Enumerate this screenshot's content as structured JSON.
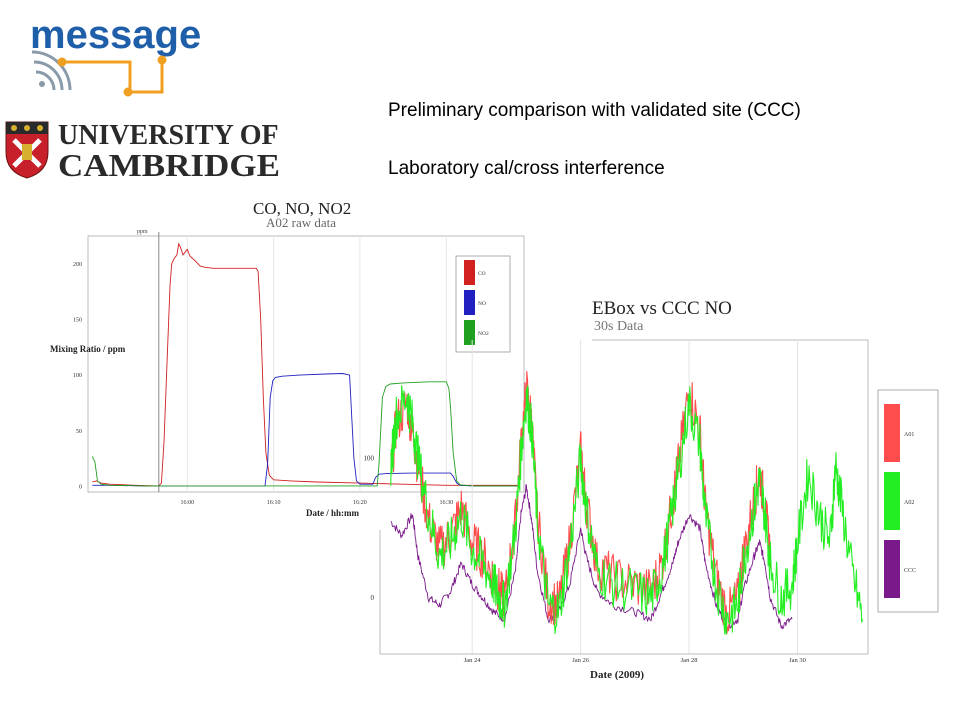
{
  "logos": {
    "message_word": "message",
    "university_line1": "UNIVERSITY OF",
    "university_line2": "CAMBRIDGE",
    "crest_icon": "cambridge-crest-icon",
    "signal_icon": "wireless-signal-icon"
  },
  "headings": {
    "line1": "Preliminary comparison with validated site (CCC)",
    "line2": "Laboratory cal/cross interference"
  },
  "chart_data": [
    {
      "type": "line",
      "title": "CO, NO, NO2",
      "subtitle": "A02 raw data",
      "xlabel": "Date / hh:mm",
      "ylabel": "Mixing Ratio / ppm",
      "marker_label": "ppm",
      "x_ticks": [
        "16:00",
        "16:10",
        "16:20",
        "16:30"
      ],
      "y_ticks": [
        "0",
        "50",
        "100",
        "150",
        "200"
      ],
      "xlim": [
        -11.5,
        39
      ],
      "ylim": [
        -5,
        225
      ],
      "legend_position": "top-right",
      "series": [
        {
          "name": "CO",
          "color": "#d22020",
          "points": [
            [
              -11,
              4
            ],
            [
              -10.5,
              5
            ],
            [
              -10,
              3
            ],
            [
              -9,
              2
            ],
            [
              -6,
              1
            ],
            [
              -3.3,
              0.5
            ],
            [
              -3,
              3
            ],
            [
              -2.7,
              40
            ],
            [
              -2.3,
              120
            ],
            [
              -2,
              180
            ],
            [
              -1.8,
              200
            ],
            [
              -1.5,
              205
            ],
            [
              -1.2,
              208
            ],
            [
              -1,
              218
            ],
            [
              -0.8,
              215
            ],
            [
              -0.5,
              208
            ],
            [
              -0.3,
              210
            ],
            [
              0,
              213
            ],
            [
              0.3,
              207
            ],
            [
              0.6,
              205
            ],
            [
              1,
              202
            ],
            [
              1.5,
              198
            ],
            [
              2,
              197
            ],
            [
              3,
              196
            ],
            [
              5,
              196
            ],
            [
              7,
              196
            ],
            [
              8,
              196
            ],
            [
              8.2,
              193
            ],
            [
              8.5,
              150
            ],
            [
              8.8,
              80
            ],
            [
              9.1,
              30
            ],
            [
              9.5,
              10
            ],
            [
              10,
              6
            ],
            [
              12,
              5
            ],
            [
              15,
              4
            ],
            [
              20,
              3
            ],
            [
              25,
              2
            ],
            [
              30,
              1
            ],
            [
              35,
              1
            ],
            [
              38.5,
              1
            ]
          ]
        },
        {
          "name": "NO",
          "color": "#2020c0",
          "points": [
            [
              -11,
              1
            ],
            [
              -9,
              1
            ],
            [
              -5,
              0.5
            ],
            [
              0,
              0.5
            ],
            [
              5,
              0.5
            ],
            [
              9,
              0.5
            ],
            [
              9.3,
              20
            ],
            [
              9.6,
              80
            ],
            [
              9.9,
              95
            ],
            [
              10.2,
              98
            ],
            [
              11,
              99
            ],
            [
              13,
              100
            ],
            [
              16,
              101
            ],
            [
              18,
              101.5
            ],
            [
              18.8,
              100
            ],
            [
              19,
              70
            ],
            [
              19.3,
              25
            ],
            [
              19.6,
              5
            ],
            [
              20,
              2
            ],
            [
              21,
              2
            ],
            [
              21.5,
              2
            ],
            [
              21.8,
              8
            ],
            [
              22.2,
              11
            ],
            [
              23,
              11.5
            ],
            [
              26,
              12
            ],
            [
              29,
              12
            ],
            [
              30.5,
              12
            ],
            [
              30.8,
              9
            ],
            [
              31.2,
              3
            ],
            [
              31.6,
              1
            ],
            [
              33,
              0.5
            ],
            [
              38.5,
              0.5
            ]
          ]
        },
        {
          "name": "NO2",
          "color": "#20a020",
          "points": [
            [
              -11,
              27
            ],
            [
              -10.7,
              22
            ],
            [
              -10.4,
              5
            ],
            [
              -10,
              2
            ],
            [
              -9,
              1
            ],
            [
              -5,
              0.5
            ],
            [
              0,
              0.5
            ],
            [
              5,
              0.5
            ],
            [
              10,
              0.5
            ],
            [
              15,
              0.5
            ],
            [
              20,
              0.5
            ],
            [
              22,
              0.5
            ],
            [
              22.2,
              20
            ],
            [
              22.6,
              80
            ],
            [
              23,
              90
            ],
            [
              23.5,
              92
            ],
            [
              25,
              93
            ],
            [
              28,
              94
            ],
            [
              30,
              94
            ],
            [
              30.3,
              88
            ],
            [
              30.5,
              70
            ],
            [
              30.8,
              30
            ],
            [
              31.2,
              5
            ],
            [
              31.6,
              1.5
            ],
            [
              33,
              0.5
            ],
            [
              38.5,
              0.5
            ]
          ]
        }
      ]
    },
    {
      "type": "line",
      "title": "EBox vs CCC NO",
      "subtitle": "30s Data",
      "xlabel": "Date (2009)",
      "x_ticks": [
        "Jan 24",
        "Jan 26",
        "Jan 28",
        "Jan 30"
      ],
      "y_ticks": [
        "0",
        "100"
      ],
      "xlim": [
        22.3,
        31.3
      ],
      "ylim": [
        -40,
        185
      ],
      "legend_position": "right",
      "series": [
        {
          "name": "A01",
          "color": "#ff4d4d",
          "points": [
            [
              22.5,
              90
            ],
            [
              22.6,
              125
            ],
            [
              22.8,
              140
            ],
            [
              22.9,
              120
            ],
            [
              23.0,
              95
            ],
            [
              23.2,
              55
            ],
            [
              23.4,
              35
            ],
            [
              23.6,
              45
            ],
            [
              23.8,
              65
            ],
            [
              24.0,
              40
            ],
            [
              24.2,
              30
            ],
            [
              24.4,
              15
            ],
            [
              24.5,
              5
            ],
            [
              24.6,
              -2
            ],
            [
              24.8,
              55
            ],
            [
              24.9,
              110
            ],
            [
              25.0,
              150
            ],
            [
              25.1,
              125
            ],
            [
              25.2,
              60
            ],
            [
              25.4,
              0
            ],
            [
              25.6,
              -5
            ],
            [
              25.8,
              40
            ],
            [
              26.0,
              105
            ],
            [
              26.1,
              70
            ],
            [
              26.3,
              25
            ],
            [
              26.6,
              15
            ],
            [
              27.0,
              10
            ],
            [
              27.3,
              5
            ],
            [
              27.5,
              25
            ],
            [
              27.7,
              70
            ],
            [
              27.8,
              95
            ],
            [
              28.0,
              150
            ],
            [
              28.2,
              120
            ],
            [
              28.3,
              65
            ],
            [
              28.5,
              15
            ],
            [
              28.7,
              -12
            ],
            [
              28.9,
              0
            ],
            [
              29.0,
              30
            ],
            [
              29.2,
              70
            ],
            [
              29.3,
              90
            ],
            [
              29.4,
              65
            ],
            [
              29.5,
              30
            ]
          ]
        },
        {
          "name": "A02",
          "color": "#22ee22",
          "points": [
            [
              22.5,
              95
            ],
            [
              22.6,
              130
            ],
            [
              22.8,
              145
            ],
            [
              22.9,
              125
            ],
            [
              23.0,
              100
            ],
            [
              23.2,
              60
            ],
            [
              23.4,
              30
            ],
            [
              23.6,
              40
            ],
            [
              23.8,
              60
            ],
            [
              24.0,
              35
            ],
            [
              24.2,
              25
            ],
            [
              24.4,
              10
            ],
            [
              24.5,
              0
            ],
            [
              24.6,
              -5
            ],
            [
              24.8,
              50
            ],
            [
              24.9,
              105
            ],
            [
              25.0,
              145
            ],
            [
              25.1,
              120
            ],
            [
              25.2,
              55
            ],
            [
              25.4,
              -5
            ],
            [
              25.6,
              -10
            ],
            [
              25.8,
              35
            ],
            [
              26.0,
              100
            ],
            [
              26.1,
              65
            ],
            [
              26.3,
              20
            ],
            [
              26.6,
              10
            ],
            [
              27.0,
              5
            ],
            [
              27.3,
              0
            ],
            [
              27.5,
              20
            ],
            [
              27.7,
              65
            ],
            [
              27.8,
              90
            ],
            [
              28.0,
              140
            ],
            [
              28.2,
              110
            ],
            [
              28.3,
              60
            ],
            [
              28.5,
              10
            ],
            [
              28.7,
              -15
            ],
            [
              28.9,
              -5
            ],
            [
              29.0,
              25
            ],
            [
              29.2,
              65
            ],
            [
              29.3,
              85
            ],
            [
              29.4,
              60
            ],
            [
              29.5,
              25
            ],
            [
              29.7,
              0
            ],
            [
              29.9,
              10
            ],
            [
              30.0,
              40
            ],
            [
              30.2,
              90
            ],
            [
              30.4,
              60
            ],
            [
              30.6,
              40
            ],
            [
              30.7,
              95
            ],
            [
              30.8,
              70
            ],
            [
              31.0,
              20
            ],
            [
              31.2,
              -15
            ]
          ]
        },
        {
          "name": "CCC",
          "color": "#7a1a8a",
          "points": [
            [
              22.5,
              55
            ],
            [
              22.7,
              45
            ],
            [
              22.9,
              60
            ],
            [
              23.0,
              30
            ],
            [
              23.2,
              0
            ],
            [
              23.4,
              -5
            ],
            [
              23.6,
              5
            ],
            [
              23.8,
              25
            ],
            [
              24.0,
              10
            ],
            [
              24.2,
              0
            ],
            [
              24.4,
              -10
            ],
            [
              24.6,
              -15
            ],
            [
              24.8,
              20
            ],
            [
              24.9,
              60
            ],
            [
              25.0,
              80
            ],
            [
              25.1,
              55
            ],
            [
              25.2,
              20
            ],
            [
              25.4,
              -15
            ],
            [
              25.6,
              -10
            ],
            [
              25.8,
              10
            ],
            [
              26.0,
              50
            ],
            [
              26.1,
              30
            ],
            [
              26.3,
              5
            ],
            [
              26.6,
              -5
            ],
            [
              27.0,
              -10
            ],
            [
              27.3,
              -15
            ],
            [
              27.5,
              5
            ],
            [
              27.7,
              25
            ],
            [
              27.8,
              40
            ],
            [
              28.0,
              60
            ],
            [
              28.2,
              50
            ],
            [
              28.3,
              25
            ],
            [
              28.5,
              -5
            ],
            [
              28.7,
              -20
            ],
            [
              28.9,
              -15
            ],
            [
              29.0,
              5
            ],
            [
              29.2,
              30
            ],
            [
              29.3,
              40
            ],
            [
              29.4,
              25
            ],
            [
              29.5,
              0
            ],
            [
              29.7,
              -20
            ],
            [
              29.9,
              -15
            ]
          ]
        }
      ]
    }
  ]
}
